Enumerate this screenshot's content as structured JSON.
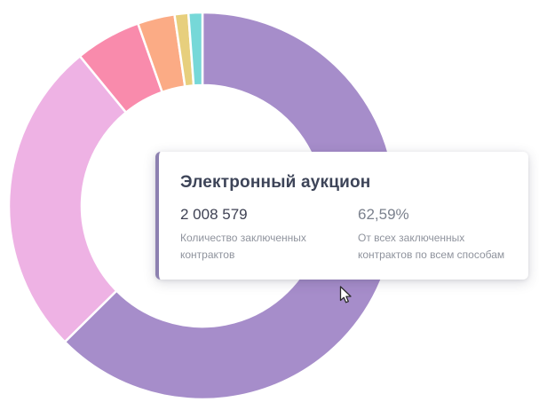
{
  "chart_data": {
    "type": "pie",
    "subtype": "donut",
    "legend": "none",
    "series": [
      {
        "name": "Электронный аукцион",
        "percent": 62.59,
        "color": "#a68dca",
        "highlighted": true
      },
      {
        "name": "",
        "percent": 26.5,
        "color": "#eeb2e4",
        "highlighted": false
      },
      {
        "name": "",
        "percent": 5.5,
        "color": "#f98bac",
        "highlighted": false
      },
      {
        "name": "",
        "percent": 3.1,
        "color": "#fbab85",
        "highlighted": false
      },
      {
        "name": "",
        "percent": 1.15,
        "color": "#e7cf7d",
        "highlighted": false
      },
      {
        "name": "",
        "percent": 1.16,
        "color": "#76d8d8",
        "highlighted": false
      }
    ],
    "gap_color": "#ffffff",
    "start_angle_deg": 0,
    "direction": "clockwise"
  },
  "tooltip": {
    "title": "Электронный аукцион",
    "accent_color": "#8d81b0",
    "left": {
      "value": "2 008 579",
      "label": "Количество заключенных контрактов"
    },
    "right": {
      "value": "62,59%",
      "label": "От всех заключенных контрактов по всем способам"
    }
  }
}
